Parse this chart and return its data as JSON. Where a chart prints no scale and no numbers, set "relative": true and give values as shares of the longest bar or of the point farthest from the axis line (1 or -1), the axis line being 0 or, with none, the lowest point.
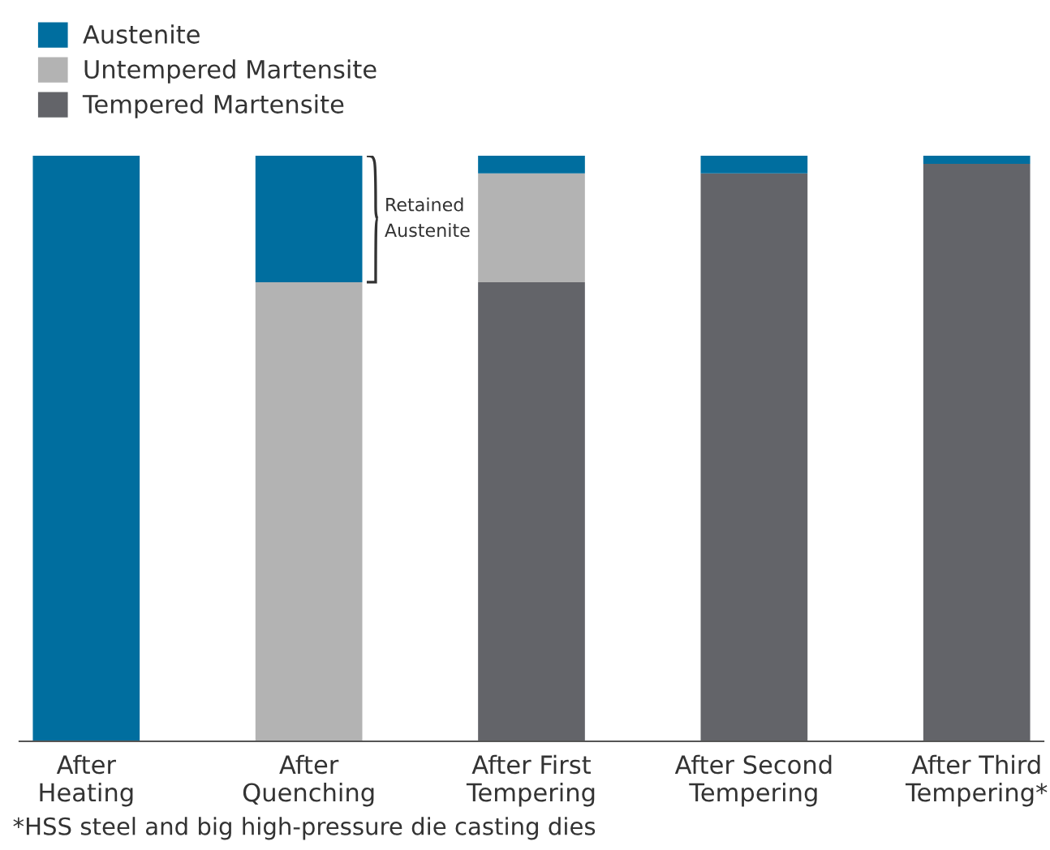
{
  "chart_data": {
    "type": "bar",
    "stacked": true,
    "relative": true,
    "legend": "top left",
    "grid": false,
    "categories": [
      "After\nHeating",
      "After\nQuenching",
      "After First\nTempering",
      "After Second\nTempering",
      "After Third\nTempering*"
    ],
    "series": [
      {
        "name": "Tempered Martensite",
        "color": "#636469",
        "values": [
          0,
          0,
          0.784,
          0.97,
          0.986
        ]
      },
      {
        "name": "Untempered Martensite",
        "color": "#b3b3b3",
        "values": [
          0,
          0.784,
          0.186,
          0,
          0
        ]
      },
      {
        "name": "Austenite",
        "color": "#006e9f",
        "values": [
          1,
          0.216,
          0.03,
          0.03,
          0.014
        ]
      }
    ],
    "annotations": [
      "Retained\nAustenite",
      "*HSS steel and big high-pressure die casting dies"
    ]
  }
}
